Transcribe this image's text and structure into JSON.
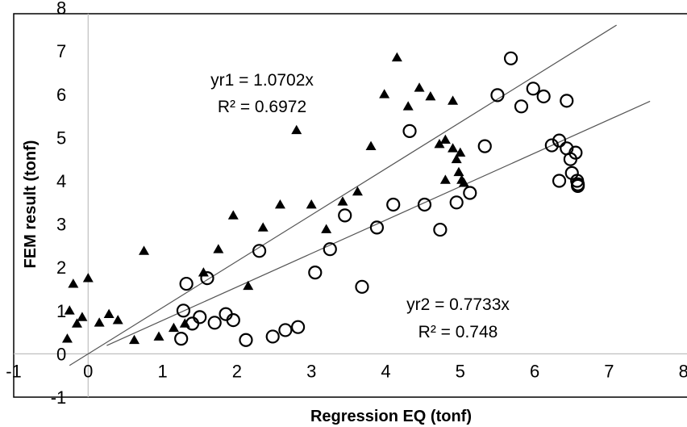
{
  "chart_data": {
    "type": "scatter",
    "xlabel": "Regression EQ (tonf)",
    "ylabel": "FEM result (tonf)",
    "xlim": [
      -1,
      8
    ],
    "ylim": [
      -1,
      8
    ],
    "xticks": [
      "-1",
      "0",
      "1",
      "2",
      "3",
      "4",
      "5",
      "6",
      "7",
      "8"
    ],
    "yticks": [
      "-1",
      "0",
      "1",
      "2",
      "3",
      "4",
      "5",
      "6",
      "7",
      "8"
    ],
    "grid": false,
    "legend": "none",
    "series": [
      {
        "marker": "filled-triangle",
        "color": "#000000",
        "points": [
          [
            -0.2,
            1.62
          ],
          [
            -0.25,
            1.0
          ],
          [
            -0.28,
            0.35
          ],
          [
            -0.15,
            0.7
          ],
          [
            -0.08,
            0.85
          ],
          [
            0.0,
            1.75
          ],
          [
            0.15,
            0.72
          ],
          [
            0.28,
            0.92
          ],
          [
            0.4,
            0.78
          ],
          [
            0.62,
            0.32
          ],
          [
            0.75,
            2.38
          ],
          [
            0.95,
            0.4
          ],
          [
            1.15,
            0.6
          ],
          [
            1.3,
            0.7
          ],
          [
            1.55,
            1.88
          ],
          [
            1.75,
            2.42
          ],
          [
            1.95,
            3.2
          ],
          [
            2.15,
            1.57
          ],
          [
            2.35,
            2.92
          ],
          [
            2.58,
            3.45
          ],
          [
            2.8,
            5.17
          ],
          [
            3.0,
            3.45
          ],
          [
            3.2,
            2.88
          ],
          [
            3.42,
            3.52
          ],
          [
            3.62,
            3.75
          ],
          [
            3.8,
            4.8
          ],
          [
            3.98,
            6.0
          ],
          [
            4.15,
            6.85
          ],
          [
            4.3,
            5.72
          ],
          [
            4.45,
            6.15
          ],
          [
            4.6,
            5.95
          ],
          [
            4.72,
            4.85
          ],
          [
            4.8,
            4.95
          ],
          [
            4.8,
            4.02
          ],
          [
            4.9,
            5.85
          ],
          [
            4.9,
            4.75
          ],
          [
            4.95,
            4.5
          ],
          [
            4.98,
            4.2
          ],
          [
            5.0,
            4.65
          ],
          [
            5.02,
            4.02
          ],
          [
            5.05,
            3.95
          ]
        ]
      },
      {
        "marker": "open-circle",
        "color": "#000000",
        "points": [
          [
            1.25,
            0.35
          ],
          [
            1.28,
            1.0
          ],
          [
            1.32,
            1.62
          ],
          [
            1.4,
            0.7
          ],
          [
            1.5,
            0.85
          ],
          [
            1.6,
            1.75
          ],
          [
            1.7,
            0.72
          ],
          [
            1.85,
            0.92
          ],
          [
            1.95,
            0.78
          ],
          [
            2.12,
            0.32
          ],
          [
            2.3,
            2.38
          ],
          [
            2.48,
            0.4
          ],
          [
            2.65,
            0.55
          ],
          [
            2.82,
            0.62
          ],
          [
            3.05,
            1.88
          ],
          [
            3.25,
            2.42
          ],
          [
            3.45,
            3.2
          ],
          [
            3.68,
            1.55
          ],
          [
            3.88,
            2.92
          ],
          [
            4.1,
            3.45
          ],
          [
            4.32,
            5.15
          ],
          [
            4.52,
            3.45
          ],
          [
            4.73,
            2.87
          ],
          [
            4.95,
            3.5
          ],
          [
            5.13,
            3.72
          ],
          [
            5.33,
            4.8
          ],
          [
            5.5,
            5.98
          ],
          [
            5.68,
            6.83
          ],
          [
            5.82,
            5.72
          ],
          [
            5.98,
            6.13
          ],
          [
            6.12,
            5.95
          ],
          [
            6.23,
            4.82
          ],
          [
            6.33,
            4.93
          ],
          [
            6.33,
            4.0
          ],
          [
            6.43,
            5.85
          ],
          [
            6.43,
            4.75
          ],
          [
            6.48,
            4.5
          ],
          [
            6.5,
            4.18
          ],
          [
            6.55,
            4.65
          ],
          [
            6.57,
            4.0
          ],
          [
            6.58,
            3.92
          ],
          [
            6.58,
            3.88
          ]
        ]
      }
    ],
    "trendlines": [
      {
        "series": 0,
        "slope": 1.0702,
        "x_range": [
          -0.25,
          7.1
        ],
        "label_lines": [
          "yr1 = 1.0702x",
          "R² = 0.6972"
        ]
      },
      {
        "series": 1,
        "slope": 0.7733,
        "x_range": [
          0.25,
          7.55
        ],
        "label_lines": [
          "yr2 = 0.7733x",
          "R² = 0.748"
        ]
      }
    ]
  }
}
